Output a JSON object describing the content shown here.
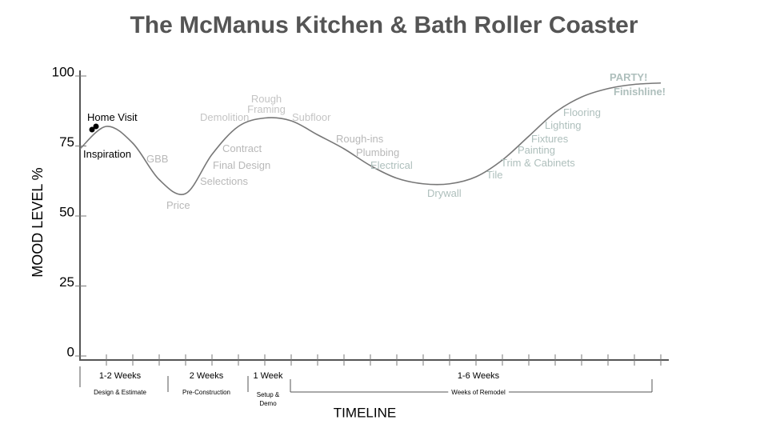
{
  "chart_data": {
    "type": "line",
    "title": "The McManus Kitchen & Bath Roller Coaster",
    "y_label": "MOOD LEVEL %",
    "x_label": "TIMELINE",
    "categories": [
      null,
      null,
      null,
      null,
      null,
      null,
      null,
      null,
      null,
      null,
      null,
      null,
      null,
      null,
      null,
      null,
      null,
      null,
      null,
      null,
      null,
      null,
      null
    ],
    "values": [
      74,
      82,
      76,
      63,
      58,
      72,
      82,
      85,
      84,
      79,
      74,
      68,
      63.5,
      61.5,
      61.5,
      64,
      70,
      78.5,
      87,
      92.5,
      95.5,
      97,
      97.5
    ],
    "color": "#777777",
    "ylim": [
      0,
      100
    ],
    "yticks": [
      0,
      25,
      50,
      75,
      100
    ],
    "grid": false,
    "annotations": [
      {
        "text": "Home Visit",
        "color": "#000000"
      },
      {
        "text": "Inspiration",
        "color": "#000000"
      },
      {
        "text": "GBB",
        "color": "#b8b8b8"
      },
      {
        "text": "Price",
        "color": "#b8b8b8"
      },
      {
        "text": "Selections",
        "color": "#b8b8b8"
      },
      {
        "text": "Final Design",
        "color": "#b8b8b8"
      },
      {
        "text": "Contract",
        "color": "#b8b8b8"
      },
      {
        "text": "Demolition",
        "color": "#c4c4c4"
      },
      {
        "text": "Rough Framing",
        "color": "#c4c4c4"
      },
      {
        "text": "Subfloor",
        "color": "#c4c4c4"
      },
      {
        "text": "Rough-ins",
        "color": "#b8b8b8"
      },
      {
        "text": "Plumbing",
        "color": "#b8b8b8"
      },
      {
        "text": "Electrical",
        "color": "#aebfbc"
      },
      {
        "text": "Drywall",
        "color": "#aebfbc"
      },
      {
        "text": "Tile",
        "color": "#aebfbc"
      },
      {
        "text": "Trim & Cabinets",
        "color": "#aebfbc"
      },
      {
        "text": "Painting",
        "color": "#aebfbc"
      },
      {
        "text": "Fixtures",
        "color": "#aebfbc"
      },
      {
        "text": "Lighting",
        "color": "#aebfbc"
      },
      {
        "text": "Flooring",
        "color": "#aebfbc"
      },
      {
        "text": "PARTY!",
        "color": "#aebfbc",
        "bold": true
      },
      {
        "text": "Finishline!",
        "color": "#aebfbc",
        "bold": true
      }
    ],
    "phases": [
      {
        "duration": "1-2 Weeks",
        "name": "Design & Estimate"
      },
      {
        "duration": "2 Weeks",
        "name": "Pre-Construction"
      },
      {
        "duration": "1 Week",
        "name": "Setup & Demo"
      },
      {
        "duration": "1-6 Weeks",
        "name": "Weeks of Remodel"
      }
    ]
  }
}
